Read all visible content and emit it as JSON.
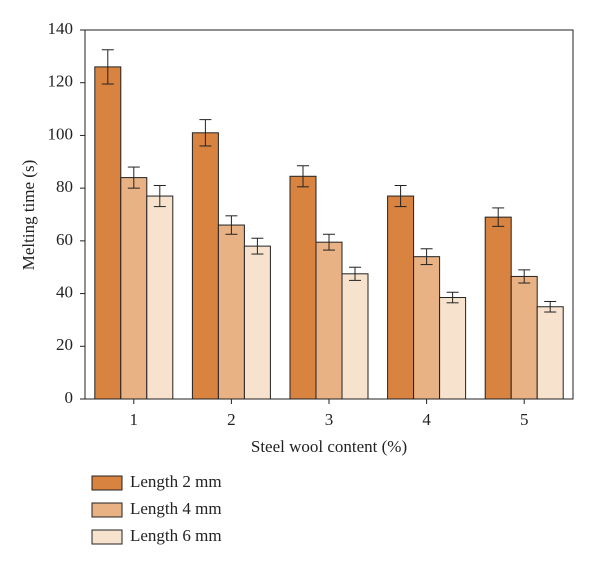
{
  "chart_data": {
    "type": "bar",
    "x_label": "Steel wool content (%)",
    "y_label": "Melting time (s)",
    "categories": [
      "1",
      "2",
      "3",
      "4",
      "5"
    ],
    "series": [
      {
        "name": "Length 2 mm",
        "color": "#d98340",
        "values": [
          126,
          101,
          84.5,
          77,
          69
        ],
        "errors": [
          6.5,
          5,
          4,
          4,
          3.5
        ]
      },
      {
        "name": "Length 4 mm",
        "color": "#e9b285",
        "values": [
          84,
          66,
          59.5,
          54,
          46.5
        ],
        "errors": [
          4,
          3.5,
          3,
          3,
          2.5
        ]
      },
      {
        "name": "Length 6 mm",
        "color": "#f7e3cd",
        "values": [
          77,
          58,
          47.5,
          38.5,
          35
        ],
        "errors": [
          4,
          3,
          2.5,
          2,
          2
        ]
      }
    ],
    "ylim": [
      0,
      140
    ],
    "yticks": [
      0,
      20,
      40,
      60,
      80,
      100,
      120,
      140
    ]
  }
}
